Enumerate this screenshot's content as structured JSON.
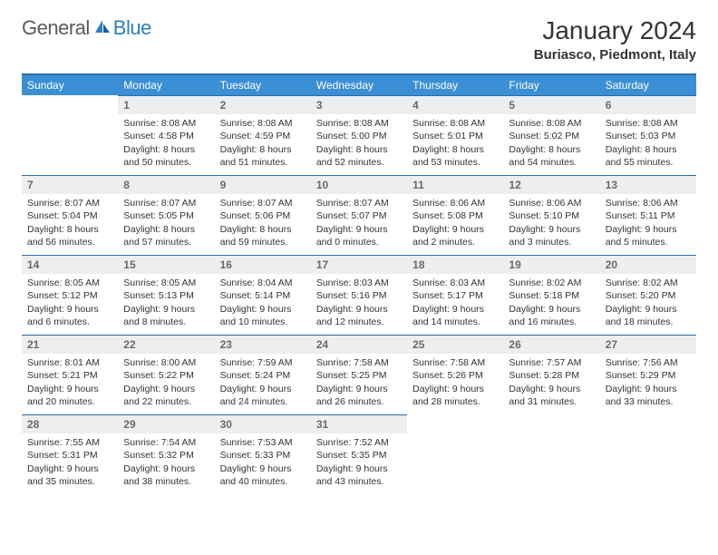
{
  "brand": {
    "part1": "General",
    "part2": "Blue"
  },
  "title": "January 2024",
  "location": "Buriasco, Piedmont, Italy",
  "colors": {
    "header_bg": "#3b8fd4",
    "header_border": "#2a6ea8",
    "daynum_bg": "#eceeef",
    "daynum_color": "#6a6a6a",
    "brand_gray": "#5a5a5a",
    "brand_blue": "#2a7fbf"
  },
  "weekdays": [
    "Sunday",
    "Monday",
    "Tuesday",
    "Wednesday",
    "Thursday",
    "Friday",
    "Saturday"
  ],
  "first_weekday_offset": 1,
  "num_days": 31,
  "days": {
    "1": {
      "sunrise": "8:08 AM",
      "sunset": "4:58 PM",
      "daylight": "8 hours and 50 minutes."
    },
    "2": {
      "sunrise": "8:08 AM",
      "sunset": "4:59 PM",
      "daylight": "8 hours and 51 minutes."
    },
    "3": {
      "sunrise": "8:08 AM",
      "sunset": "5:00 PM",
      "daylight": "8 hours and 52 minutes."
    },
    "4": {
      "sunrise": "8:08 AM",
      "sunset": "5:01 PM",
      "daylight": "8 hours and 53 minutes."
    },
    "5": {
      "sunrise": "8:08 AM",
      "sunset": "5:02 PM",
      "daylight": "8 hours and 54 minutes."
    },
    "6": {
      "sunrise": "8:08 AM",
      "sunset": "5:03 PM",
      "daylight": "8 hours and 55 minutes."
    },
    "7": {
      "sunrise": "8:07 AM",
      "sunset": "5:04 PM",
      "daylight": "8 hours and 56 minutes."
    },
    "8": {
      "sunrise": "8:07 AM",
      "sunset": "5:05 PM",
      "daylight": "8 hours and 57 minutes."
    },
    "9": {
      "sunrise": "8:07 AM",
      "sunset": "5:06 PM",
      "daylight": "8 hours and 59 minutes."
    },
    "10": {
      "sunrise": "8:07 AM",
      "sunset": "5:07 PM",
      "daylight": "9 hours and 0 minutes."
    },
    "11": {
      "sunrise": "8:06 AM",
      "sunset": "5:08 PM",
      "daylight": "9 hours and 2 minutes."
    },
    "12": {
      "sunrise": "8:06 AM",
      "sunset": "5:10 PM",
      "daylight": "9 hours and 3 minutes."
    },
    "13": {
      "sunrise": "8:06 AM",
      "sunset": "5:11 PM",
      "daylight": "9 hours and 5 minutes."
    },
    "14": {
      "sunrise": "8:05 AM",
      "sunset": "5:12 PM",
      "daylight": "9 hours and 6 minutes."
    },
    "15": {
      "sunrise": "8:05 AM",
      "sunset": "5:13 PM",
      "daylight": "9 hours and 8 minutes."
    },
    "16": {
      "sunrise": "8:04 AM",
      "sunset": "5:14 PM",
      "daylight": "9 hours and 10 minutes."
    },
    "17": {
      "sunrise": "8:03 AM",
      "sunset": "5:16 PM",
      "daylight": "9 hours and 12 minutes."
    },
    "18": {
      "sunrise": "8:03 AM",
      "sunset": "5:17 PM",
      "daylight": "9 hours and 14 minutes."
    },
    "19": {
      "sunrise": "8:02 AM",
      "sunset": "5:18 PM",
      "daylight": "9 hours and 16 minutes."
    },
    "20": {
      "sunrise": "8:02 AM",
      "sunset": "5:20 PM",
      "daylight": "9 hours and 18 minutes."
    },
    "21": {
      "sunrise": "8:01 AM",
      "sunset": "5:21 PM",
      "daylight": "9 hours and 20 minutes."
    },
    "22": {
      "sunrise": "8:00 AM",
      "sunset": "5:22 PM",
      "daylight": "9 hours and 22 minutes."
    },
    "23": {
      "sunrise": "7:59 AM",
      "sunset": "5:24 PM",
      "daylight": "9 hours and 24 minutes."
    },
    "24": {
      "sunrise": "7:58 AM",
      "sunset": "5:25 PM",
      "daylight": "9 hours and 26 minutes."
    },
    "25": {
      "sunrise": "7:58 AM",
      "sunset": "5:26 PM",
      "daylight": "9 hours and 28 minutes."
    },
    "26": {
      "sunrise": "7:57 AM",
      "sunset": "5:28 PM",
      "daylight": "9 hours and 31 minutes."
    },
    "27": {
      "sunrise": "7:56 AM",
      "sunset": "5:29 PM",
      "daylight": "9 hours and 33 minutes."
    },
    "28": {
      "sunrise": "7:55 AM",
      "sunset": "5:31 PM",
      "daylight": "9 hours and 35 minutes."
    },
    "29": {
      "sunrise": "7:54 AM",
      "sunset": "5:32 PM",
      "daylight": "9 hours and 38 minutes."
    },
    "30": {
      "sunrise": "7:53 AM",
      "sunset": "5:33 PM",
      "daylight": "9 hours and 40 minutes."
    },
    "31": {
      "sunrise": "7:52 AM",
      "sunset": "5:35 PM",
      "daylight": "9 hours and 43 minutes."
    }
  },
  "labels": {
    "sunrise": "Sunrise: ",
    "sunset": "Sunset: ",
    "daylight": "Daylight: "
  }
}
